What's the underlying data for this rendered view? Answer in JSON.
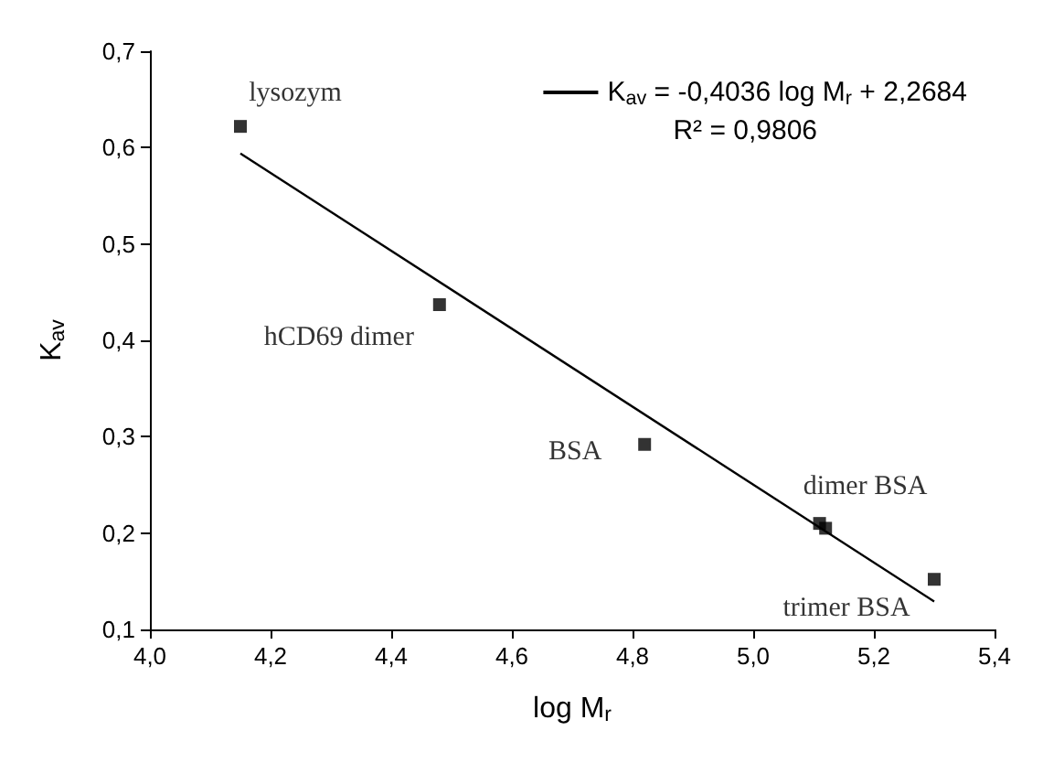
{
  "chart_data": {
    "type": "scatter",
    "xlabel": "log M$_{r}$",
    "ylabel": "K$_{av}$",
    "xlim": [
      4.0,
      5.4
    ],
    "xticks": [
      {
        "value": 4.0,
        "label": "4,0"
      },
      {
        "value": 4.2,
        "label": "4,2"
      },
      {
        "value": 4.4,
        "label": "4,4"
      },
      {
        "value": 4.6,
        "label": "4,6"
      },
      {
        "value": 4.8,
        "label": "4,8"
      },
      {
        "value": 5.0,
        "label": "5,0"
      },
      {
        "value": 5.2,
        "label": "5,2"
      },
      {
        "value": 5.4,
        "label": "5,4"
      }
    ],
    "ylim": [
      0.1,
      0.7
    ],
    "yticks": [
      {
        "value": 0.1,
        "label": "0,1"
      },
      {
        "value": 0.2,
        "label": "0,2"
      },
      {
        "value": 0.3,
        "label": "0,3"
      },
      {
        "value": 0.4,
        "label": "0,4"
      },
      {
        "value": 0.5,
        "label": "0,5"
      },
      {
        "value": 0.6,
        "label": "0,6"
      },
      {
        "value": 0.7,
        "label": "0,7"
      }
    ],
    "series": [
      {
        "color": "#000000",
        "marker": "square",
        "x": [
          4.15,
          4.48,
          4.82,
          5.11,
          5.12,
          5.3
        ],
        "values": [
          0.622,
          0.437,
          0.292,
          0.21,
          0.205,
          0.152
        ]
      },
      {
        "type": "line",
        "name": "K$_{av}$ = -0,4036 log M$_{r}$ + 2,2684",
        "color": "#000000",
        "line_style": "solid",
        "marker": "none",
        "x": [
          4.15,
          5.3
        ],
        "values": [
          0.594,
          0.129
        ]
      }
    ],
    "annotations": [
      {
        "text": "lysozym",
        "x": 4.15,
        "y": 0.622
      },
      {
        "text": "hCD69 dimer",
        "x": 4.48,
        "y": 0.437
      },
      {
        "text": "BSA",
        "x": 4.82,
        "y": 0.292
      },
      {
        "text": "dimer BSA",
        "x": 5.11,
        "y": 0.21
      },
      {
        "text": "trimer BSA",
        "x": 5.3,
        "y": 0.152
      },
      "R² = 0,9806"
    ],
    "legend": "top right",
    "grid": false
  }
}
